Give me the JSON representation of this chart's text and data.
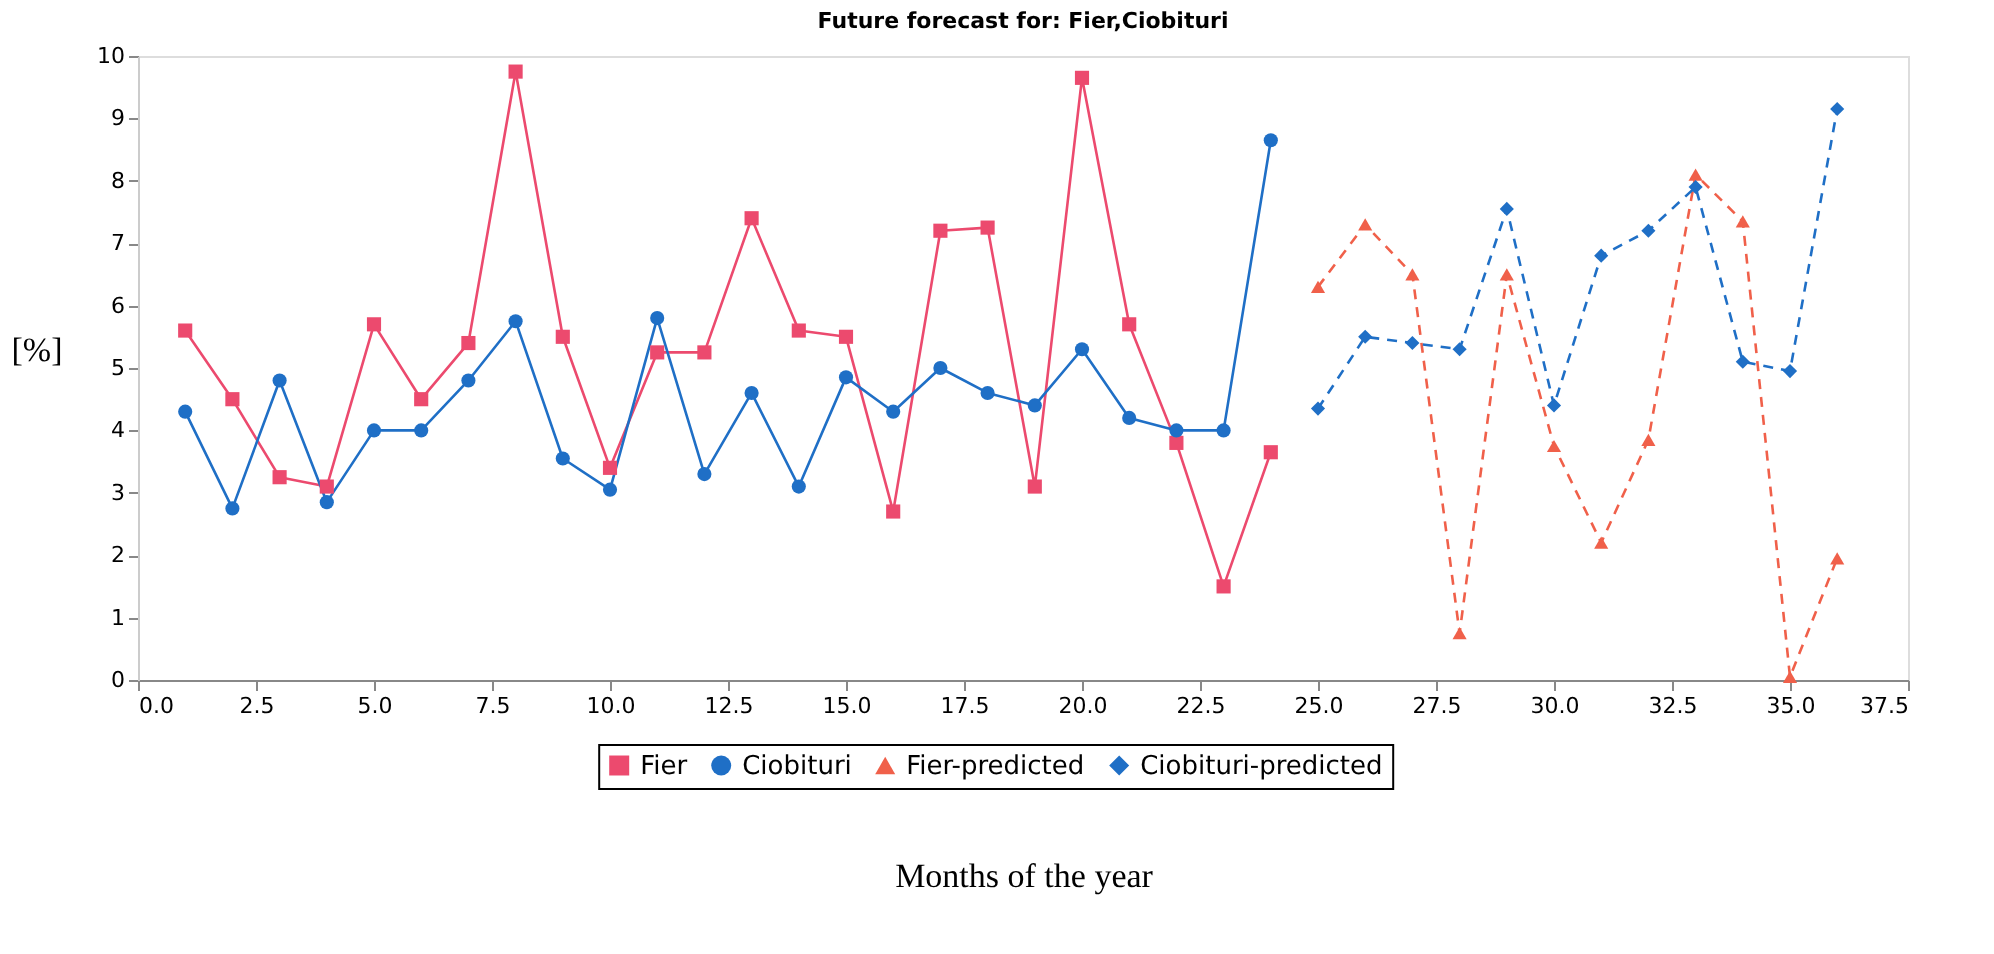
{
  "chart_data": {
    "type": "line",
    "title": "Future forecast for: Fier,Ciobituri",
    "xlabel": "Months of the year",
    "ylabel": "[%]",
    "xlim": [
      0,
      37.5
    ],
    "xticks": [
      {
        "value": 0,
        "label": "0.0"
      },
      {
        "value": 2.5,
        "label": "2.5"
      },
      {
        "value": 5,
        "label": "5.0"
      },
      {
        "value": 7.5,
        "label": "7.5"
      },
      {
        "value": 10,
        "label": "10.0"
      },
      {
        "value": 12.5,
        "label": "12.5"
      },
      {
        "value": 15,
        "label": "15.0"
      },
      {
        "value": 17.5,
        "label": "17.5"
      },
      {
        "value": 20,
        "label": "20.0"
      },
      {
        "value": 22.5,
        "label": "22.5"
      },
      {
        "value": 25,
        "label": "25.0"
      },
      {
        "value": 27.5,
        "label": "27.5"
      },
      {
        "value": 30,
        "label": "30.0"
      },
      {
        "value": 32.5,
        "label": "32.5"
      },
      {
        "value": 35,
        "label": "35.0"
      },
      {
        "value": 37.5,
        "label": "37.5"
      }
    ],
    "ylim": [
      0,
      10
    ],
    "yticks": [
      0,
      1,
      2,
      3,
      4,
      5,
      6,
      7,
      8,
      9,
      10
    ],
    "grid": false,
    "legend": "bottom",
    "series": [
      {
        "name": "Fier",
        "color": "#ec4a6e",
        "marker": "square",
        "line_style": "solid",
        "x": [
          1,
          2,
          3,
          4,
          5,
          6,
          7,
          8,
          9,
          10,
          11,
          12,
          13,
          14,
          15,
          16,
          17,
          18,
          19,
          20,
          21,
          22,
          23,
          24
        ],
        "values": [
          5.6,
          4.5,
          3.25,
          3.1,
          5.7,
          4.5,
          5.4,
          9.75,
          5.5,
          3.4,
          5.25,
          5.25,
          7.4,
          5.6,
          5.5,
          2.7,
          7.2,
          7.25,
          3.1,
          9.65,
          5.7,
          3.8,
          1.5,
          3.65
        ]
      },
      {
        "name": "Ciobituri",
        "color": "#1f6fc6",
        "marker": "circle",
        "line_style": "solid",
        "x": [
          1,
          2,
          3,
          4,
          5,
          6,
          7,
          8,
          9,
          10,
          11,
          12,
          13,
          14,
          15,
          16,
          17,
          18,
          19,
          20,
          21,
          22,
          23,
          24
        ],
        "values": [
          4.3,
          2.75,
          4.8,
          2.85,
          4.0,
          4.0,
          4.8,
          5.75,
          3.55,
          3.05,
          5.8,
          3.3,
          4.6,
          3.1,
          4.85,
          4.3,
          5.0,
          4.6,
          4.4,
          5.3,
          4.2,
          4.0,
          4.0,
          8.65
        ]
      },
      {
        "name": "Fier-predicted",
        "color": "#f0604a",
        "marker": "triangle",
        "line_style": "dashed",
        "x": [
          25,
          26,
          27,
          28,
          29,
          30,
          31,
          32,
          33,
          34,
          35,
          36
        ],
        "values": [
          6.3,
          7.3,
          6.5,
          0.75,
          6.5,
          3.75,
          2.2,
          3.85,
          8.1,
          7.35,
          0.05,
          1.95
        ]
      },
      {
        "name": "Ciobituri-predicted",
        "color": "#1f6fc6",
        "marker": "diamond",
        "line_style": "dashed",
        "x": [
          25,
          26,
          27,
          28,
          29,
          30,
          31,
          32,
          33,
          34,
          35,
          36
        ],
        "values": [
          4.35,
          5.5,
          5.4,
          5.3,
          7.55,
          4.4,
          6.8,
          7.2,
          7.9,
          5.1,
          4.95,
          9.15
        ]
      }
    ]
  }
}
